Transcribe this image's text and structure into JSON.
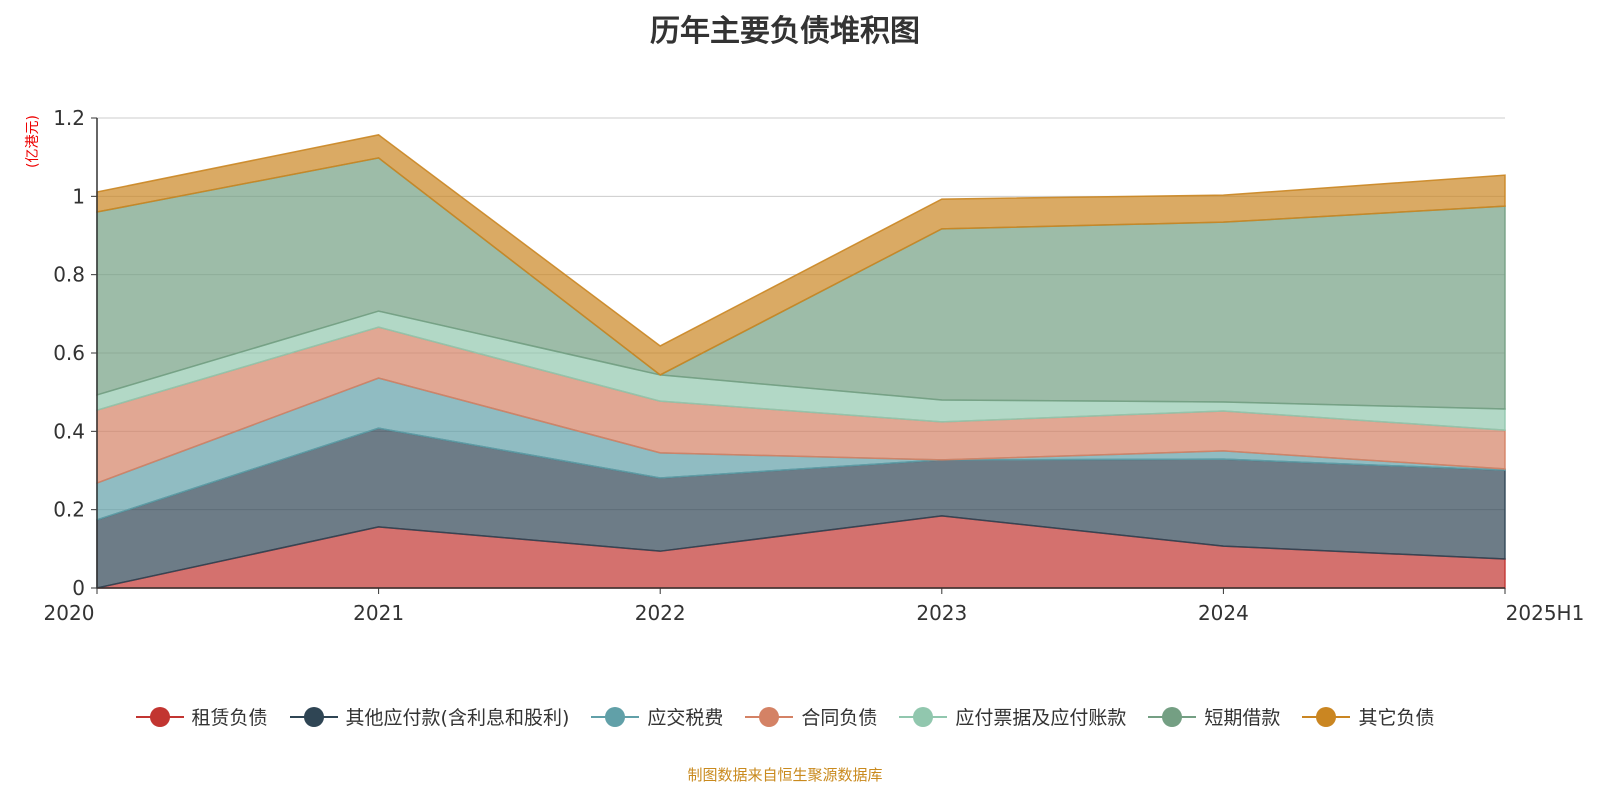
{
  "chart_data": {
    "type": "area",
    "stacked": true,
    "title": "历年主要负债堆积图",
    "ylabel": "(亿港元)",
    "xlabel": "",
    "categories": [
      "2020",
      "2021",
      "2022",
      "2023",
      "2024",
      "2025H1"
    ],
    "ylim": [
      0,
      1.2
    ],
    "yticks": [
      "0",
      "0.2",
      "0.4",
      "0.6",
      "0.8",
      "1",
      "1.2"
    ],
    "grid": true,
    "legend_position": "bottom",
    "series": [
      {
        "name": "租赁负债",
        "color": "#c23531",
        "values": [
          0,
          0.156,
          0.094,
          0.184,
          0.107,
          0.074
        ]
      },
      {
        "name": "其他应付款(含利息和股利)",
        "color": "#2f4554",
        "values": [
          0.174,
          0.252,
          0.187,
          0.143,
          0.222,
          0.227
        ]
      },
      {
        "name": "应交税费",
        "color": "#61a0a8",
        "values": [
          0.094,
          0.128,
          0.064,
          0,
          0.021,
          0.003
        ]
      },
      {
        "name": "合同负债",
        "color": "#d48265",
        "values": [
          0.186,
          0.13,
          0.132,
          0.097,
          0.102,
          0.099
        ]
      },
      {
        "name": "应付票据及应付账款",
        "color": "#91c7ae",
        "values": [
          0.039,
          0.041,
          0.067,
          0.056,
          0.023,
          0.054
        ]
      },
      {
        "name": "短期借款",
        "color": "#749f83",
        "values": [
          0.467,
          0.391,
          0,
          0.437,
          0.459,
          0.518
        ]
      },
      {
        "name": "其它负债",
        "color": "#ca8622",
        "values": [
          0.051,
          0.059,
          0.074,
          0.076,
          0.069,
          0.079
        ]
      }
    ]
  },
  "source": "制图数据来自恒生聚源数据库"
}
